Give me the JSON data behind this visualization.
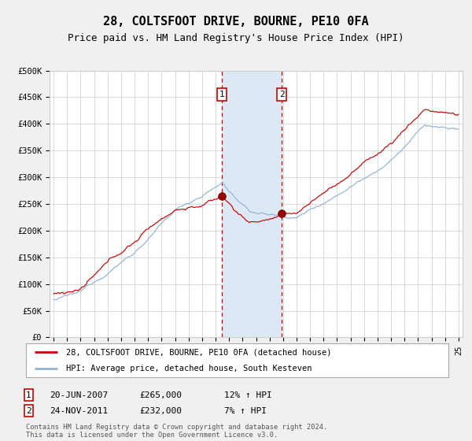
{
  "title": "28, COLTSFOOT DRIVE, BOURNE, PE10 0FA",
  "subtitle": "Price paid vs. HM Land Registry's House Price Index (HPI)",
  "ylim": [
    0,
    500000
  ],
  "yticks": [
    0,
    50000,
    100000,
    150000,
    200000,
    250000,
    300000,
    350000,
    400000,
    450000,
    500000
  ],
  "ytick_labels": [
    "£0",
    "£50K",
    "£100K",
    "£150K",
    "£200K",
    "£250K",
    "£300K",
    "£350K",
    "£400K",
    "£450K",
    "£500K"
  ],
  "sale1_date": 2007.47,
  "sale1_price": 265000,
  "sale2_date": 2011.9,
  "sale2_price": 232000,
  "sale1_text": "20-JUN-2007",
  "sale1_price_text": "£265,000",
  "sale1_hpi_text": "12% ↑ HPI",
  "sale2_text": "24-NOV-2011",
  "sale2_price_text": "£232,000",
  "sale2_hpi_text": "7% ↑ HPI",
  "shade_color": "#dce9f5",
  "price_line_color": "#cc0000",
  "hpi_line_color": "#92b4d4",
  "legend_label1": "28, COLTSFOOT DRIVE, BOURNE, PE10 0FA (detached house)",
  "legend_label2": "HPI: Average price, detached house, South Kesteven",
  "footnote": "Contains HM Land Registry data © Crown copyright and database right 2024.\nThis data is licensed under the Open Government Licence v3.0.",
  "background_color": "#f0f0f0",
  "plot_bg_color": "#ffffff",
  "grid_color": "#cccccc",
  "title_fontsize": 11,
  "subtitle_fontsize": 9,
  "axis_fontsize": 7.5
}
